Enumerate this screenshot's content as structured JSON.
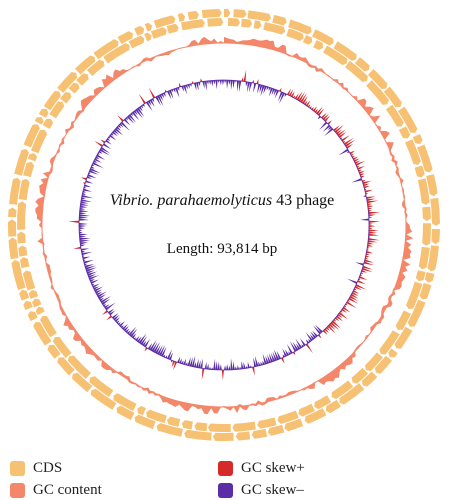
{
  "center": {
    "organism_italic": "Vibrio. parahaemolyticus",
    "organism_suffix": " 43 phage",
    "length_label": "Length: 93,814 bp"
  },
  "colors": {
    "cds": "#F7C173",
    "gc_content": "#F4876A",
    "gc_skew_plus": "#D62A2A",
    "gc_skew_minus": "#5B2DA6"
  },
  "legend": {
    "cds": "CDS",
    "gc_content": "GC content",
    "gc_skew_plus": "GC skew+",
    "gc_skew_minus": "GC skew–"
  }
}
